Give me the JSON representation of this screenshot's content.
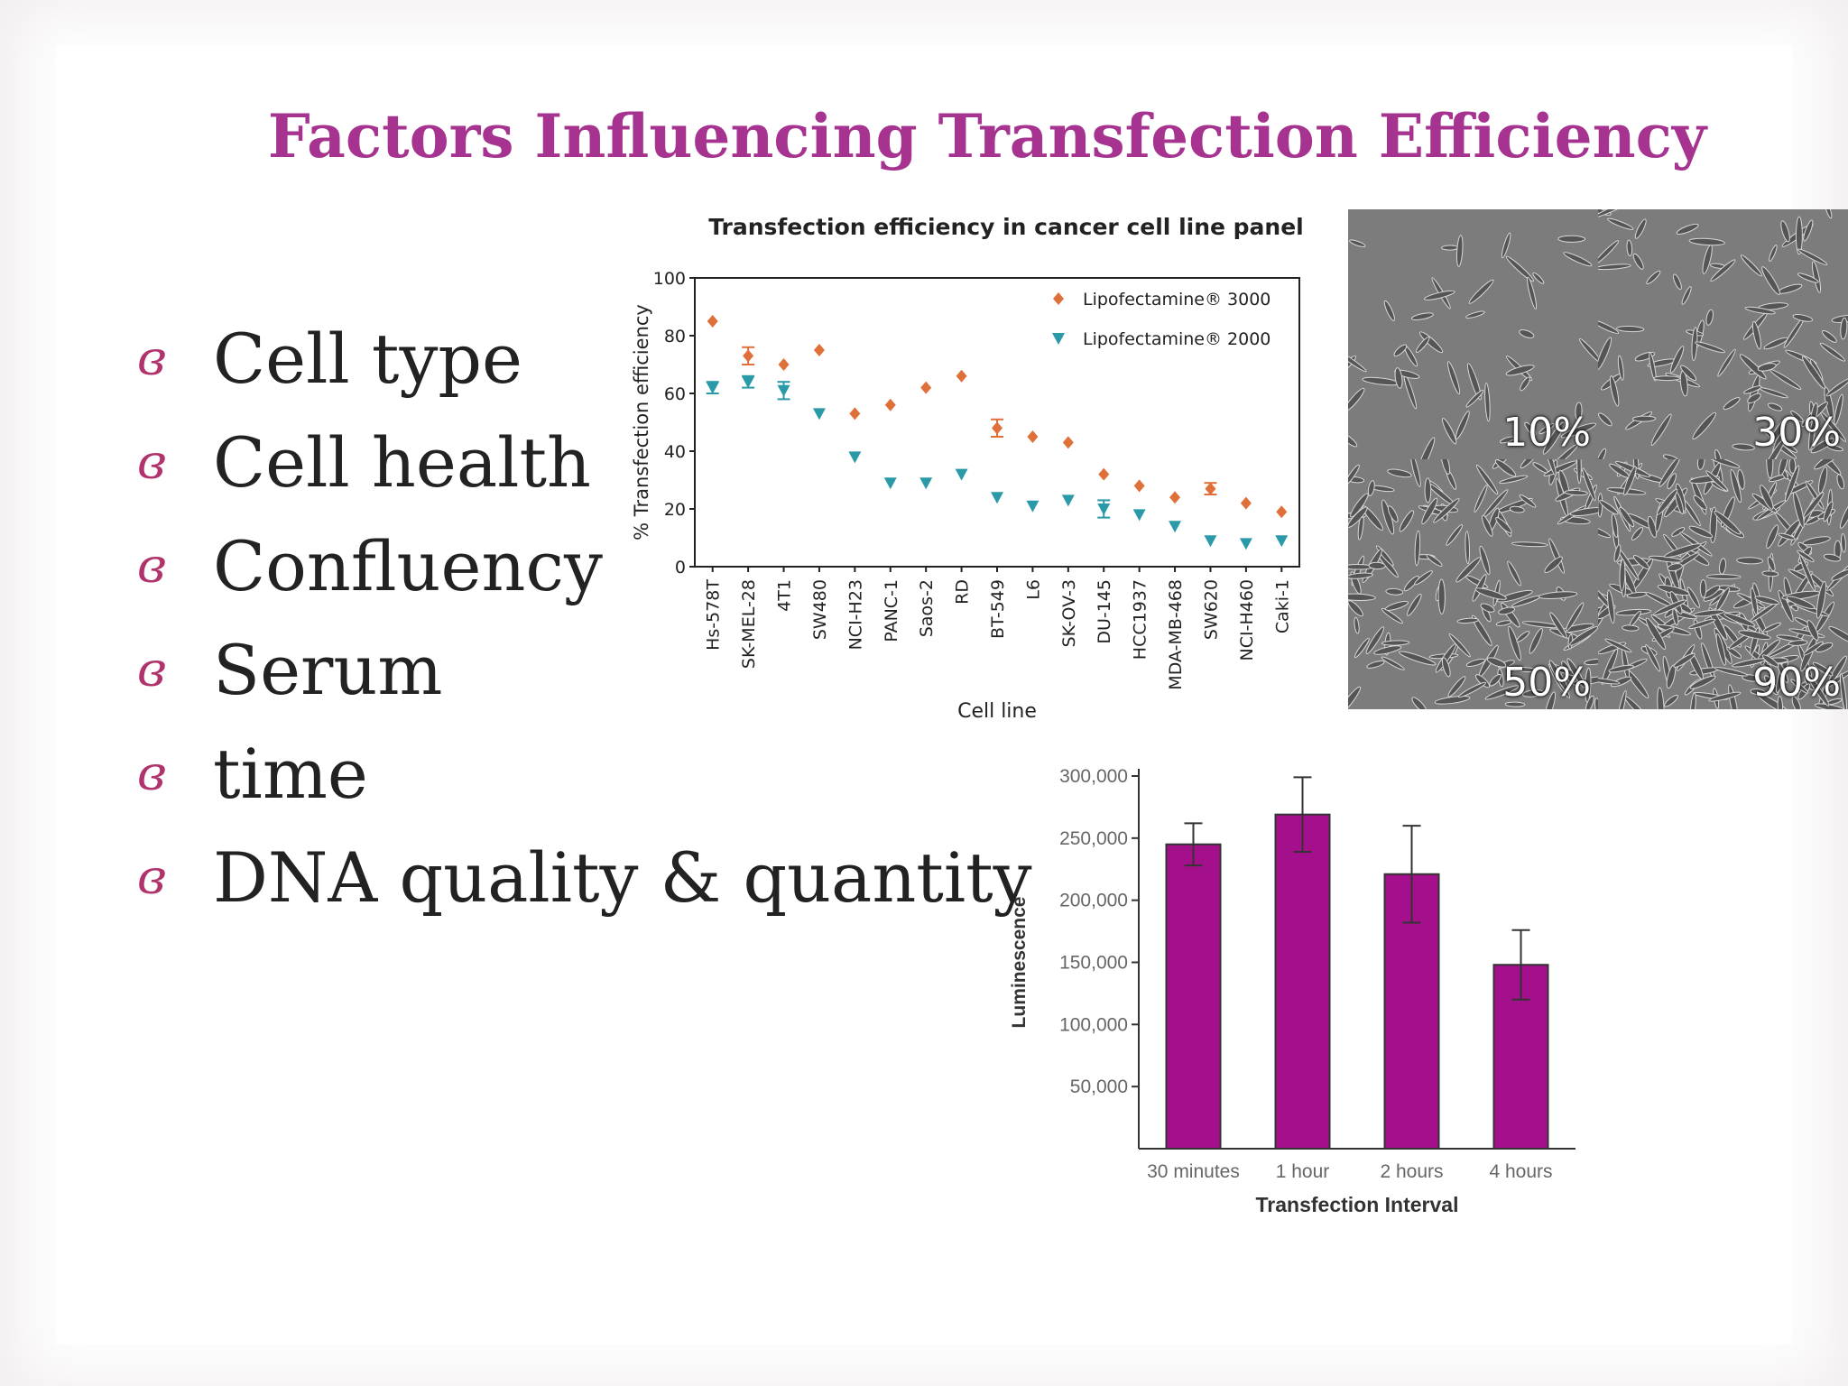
{
  "slide": {
    "title": "Factors Influencing Transfection Efficiency",
    "bullets": [
      "Cell type",
      "Cell health",
      "Confluency",
      "Serum",
      "time",
      "DNA quality & quantity"
    ]
  },
  "colors": {
    "title": "#a6338f",
    "bullet_glyph": "#b0336b",
    "lipo3000": "#e0703a",
    "lipo2000": "#2a9aa8",
    "bar_fill": "#a4108c"
  },
  "images": {
    "confluency_panels": [
      {
        "label": "10%",
        "density": 0.1
      },
      {
        "label": "30%",
        "density": 0.3
      },
      {
        "label": "50%",
        "density": 0.5
      },
      {
        "label": "90%",
        "density": 0.9
      }
    ]
  },
  "chart_data": [
    {
      "type": "scatter",
      "title": "Transfection efficiency in cancer cell line panel",
      "xlabel": "Cell line",
      "ylabel": "% Transfection efficiency",
      "ylim": [
        0,
        100
      ],
      "yticks": [
        0,
        20,
        40,
        60,
        80,
        100
      ],
      "legend_position": "top-right",
      "categories": [
        "Hs-578T",
        "SK-MEL-28",
        "4T1",
        "SW480",
        "NCI-H23",
        "PANC-1",
        "Saos-2",
        "RD",
        "BT-549",
        "L6",
        "SK-OV-3",
        "DU-145",
        "HCC1937",
        "MDA-MB-468",
        "SW620",
        "NCI-H460",
        "Caki-1"
      ],
      "series": [
        {
          "name": "Lipofectamine® 3000",
          "marker": "diamond",
          "values": [
            85,
            73,
            70,
            75,
            53,
            56,
            62,
            66,
            48,
            45,
            43,
            32,
            28,
            24,
            27,
            22,
            19
          ],
          "errors": [
            0,
            3,
            0,
            0,
            0,
            0,
            0,
            0,
            3,
            0,
            0,
            0,
            0,
            0,
            2,
            0,
            0
          ]
        },
        {
          "name": "Lipofectamine® 2000",
          "marker": "triangle-down",
          "values": [
            62,
            64,
            61,
            53,
            38,
            29,
            29,
            32,
            24,
            21,
            23,
            20,
            18,
            14,
            9,
            8,
            9
          ],
          "errors": [
            2,
            2,
            3,
            0,
            0,
            0,
            0,
            0,
            0,
            0,
            0,
            3,
            0,
            0,
            0,
            0,
            0
          ]
        }
      ]
    },
    {
      "type": "bar",
      "title": "",
      "xlabel": "Transfection Interval",
      "ylabel": "Luminescence",
      "ylim": [
        0,
        300000
      ],
      "ytick_labels": [
        "50,000",
        "100,000",
        "150,000",
        "200,000",
        "250,000",
        "300,000"
      ],
      "ytick_values": [
        50000,
        100000,
        150000,
        200000,
        250000,
        300000
      ],
      "categories": [
        "30 minutes",
        "1 hour",
        "2 hours",
        "4 hours"
      ],
      "values": [
        245000,
        269000,
        221000,
        148000
      ],
      "errors": [
        17000,
        30000,
        39000,
        28000
      ]
    }
  ]
}
